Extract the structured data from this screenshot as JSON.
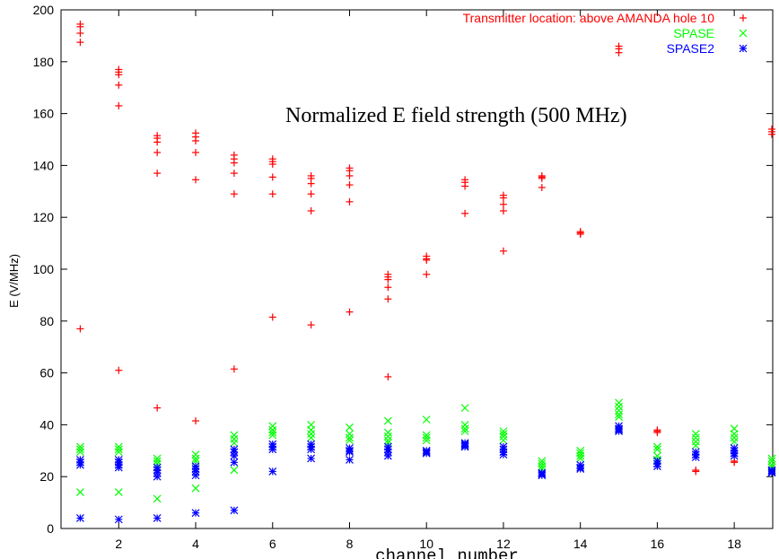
{
  "chart_data": {
    "type": "scatter",
    "title": "",
    "annotation": "Normalized E field strength (500 MHz)",
    "xlabel": "channel number",
    "ylabel": "E (V/MHz)",
    "xlim": [
      0.5,
      19
    ],
    "ylim": [
      0,
      200
    ],
    "x_ticks": [
      2,
      4,
      6,
      8,
      10,
      12,
      14,
      16,
      18
    ],
    "y_ticks": [
      0,
      20,
      40,
      60,
      80,
      100,
      120,
      140,
      160,
      180,
      200
    ],
    "grid": false,
    "legend_position": "top-right",
    "series": [
      {
        "name": "Transmitter location: above AMANDA hole 10",
        "color": "#ff0000",
        "marker": "plus",
        "points": [
          [
            1,
            194.5
          ],
          [
            1,
            193.5
          ],
          [
            1,
            191
          ],
          [
            1,
            187.5
          ],
          [
            1,
            77
          ],
          [
            2,
            177
          ],
          [
            2,
            176
          ],
          [
            2,
            175
          ],
          [
            2,
            171
          ],
          [
            2,
            163
          ],
          [
            2,
            61
          ],
          [
            3,
            151.5
          ],
          [
            3,
            150.5
          ],
          [
            3,
            149
          ],
          [
            3,
            145
          ],
          [
            3,
            137
          ],
          [
            3,
            46.5
          ],
          [
            4,
            152.5
          ],
          [
            4,
            151
          ],
          [
            4,
            149.5
          ],
          [
            4,
            145
          ],
          [
            4,
            134.5
          ],
          [
            4,
            41.5
          ],
          [
            5,
            144
          ],
          [
            5,
            142.5
          ],
          [
            5,
            141
          ],
          [
            5,
            137
          ],
          [
            5,
            129
          ],
          [
            5,
            61.5
          ],
          [
            6,
            142.5
          ],
          [
            6,
            141.5
          ],
          [
            6,
            140.5
          ],
          [
            6,
            135.5
          ],
          [
            6,
            129
          ],
          [
            6,
            81.5
          ],
          [
            7,
            136
          ],
          [
            7,
            135
          ],
          [
            7,
            133
          ],
          [
            7,
            129
          ],
          [
            7,
            122.5
          ],
          [
            7,
            78.5
          ],
          [
            8,
            139
          ],
          [
            8,
            138
          ],
          [
            8,
            136
          ],
          [
            8,
            132.5
          ],
          [
            8,
            126
          ],
          [
            8,
            83.5
          ],
          [
            9,
            98
          ],
          [
            9,
            97
          ],
          [
            9,
            96
          ],
          [
            9,
            93
          ],
          [
            9,
            88.5
          ],
          [
            9,
            58.5
          ],
          [
            10,
            105
          ],
          [
            10,
            104
          ],
          [
            10,
            103.5
          ],
          [
            10,
            98
          ],
          [
            11,
            134.5
          ],
          [
            11,
            133.5
          ],
          [
            11,
            132
          ],
          [
            11,
            121.5
          ],
          [
            12,
            128.5
          ],
          [
            12,
            127.5
          ],
          [
            12,
            125
          ],
          [
            12,
            122.5
          ],
          [
            12,
            107
          ],
          [
            13,
            136
          ],
          [
            13,
            135.5
          ],
          [
            13,
            135
          ],
          [
            13,
            131.5
          ],
          [
            14,
            114.5
          ],
          [
            14,
            114
          ],
          [
            14,
            113.5
          ],
          [
            15,
            186
          ],
          [
            15,
            185
          ],
          [
            15,
            183.5
          ],
          [
            16,
            38
          ],
          [
            16,
            37.5
          ],
          [
            16,
            37
          ],
          [
            17,
            22.5
          ],
          [
            17,
            22
          ],
          [
            18,
            26
          ],
          [
            18,
            25.5
          ],
          [
            19,
            154
          ],
          [
            19,
            153
          ],
          [
            19,
            152
          ]
        ]
      },
      {
        "name": "SPASE",
        "color": "#00ff00",
        "marker": "x",
        "points": [
          [
            1,
            31.5
          ],
          [
            1,
            30.5
          ],
          [
            1,
            29.5
          ],
          [
            1,
            14
          ],
          [
            2,
            31.5
          ],
          [
            2,
            30.5
          ],
          [
            2,
            29.5
          ],
          [
            2,
            14
          ],
          [
            3,
            27
          ],
          [
            3,
            26
          ],
          [
            3,
            25
          ],
          [
            3,
            11.5
          ],
          [
            4,
            28.5
          ],
          [
            4,
            27
          ],
          [
            4,
            26
          ],
          [
            4,
            15.5
          ],
          [
            5,
            36
          ],
          [
            5,
            34.5
          ],
          [
            5,
            33
          ],
          [
            5,
            22.5
          ],
          [
            6,
            39.5
          ],
          [
            6,
            38
          ],
          [
            6,
            37
          ],
          [
            6,
            36
          ],
          [
            7,
            40
          ],
          [
            7,
            38
          ],
          [
            7,
            36.5
          ],
          [
            7,
            35
          ],
          [
            8,
            39
          ],
          [
            8,
            36.5
          ],
          [
            8,
            35
          ],
          [
            8,
            34
          ],
          [
            9,
            41.5
          ],
          [
            9,
            37
          ],
          [
            9,
            35.5
          ],
          [
            9,
            34
          ],
          [
            9,
            33
          ],
          [
            10,
            42
          ],
          [
            10,
            36
          ],
          [
            10,
            35
          ],
          [
            10,
            34
          ],
          [
            11,
            46.5
          ],
          [
            11,
            40
          ],
          [
            11,
            38.5
          ],
          [
            11,
            37.5
          ],
          [
            12,
            37.5
          ],
          [
            12,
            36.5
          ],
          [
            12,
            35.5
          ],
          [
            12,
            34
          ],
          [
            13,
            26
          ],
          [
            13,
            25
          ],
          [
            13,
            24
          ],
          [
            13,
            23
          ],
          [
            14,
            30
          ],
          [
            14,
            29
          ],
          [
            14,
            28
          ],
          [
            14,
            27
          ],
          [
            15,
            48.5
          ],
          [
            15,
            47
          ],
          [
            15,
            45.5
          ],
          [
            15,
            44
          ],
          [
            15,
            43
          ],
          [
            16,
            31.5
          ],
          [
            16,
            30.5
          ],
          [
            16,
            28
          ],
          [
            16,
            26.5
          ],
          [
            17,
            36.5
          ],
          [
            17,
            35
          ],
          [
            17,
            33.5
          ],
          [
            17,
            32
          ],
          [
            18,
            38.5
          ],
          [
            18,
            36.5
          ],
          [
            18,
            35
          ],
          [
            18,
            33.5
          ],
          [
            19,
            27
          ],
          [
            19,
            26
          ],
          [
            19,
            24.5
          ],
          [
            19,
            23.5
          ]
        ]
      },
      {
        "name": "SPASE2",
        "color": "#0000ff",
        "marker": "star",
        "points": [
          [
            1,
            26.5
          ],
          [
            1,
            25.5
          ],
          [
            1,
            24.5
          ],
          [
            1,
            4
          ],
          [
            2,
            26.5
          ],
          [
            2,
            25.5
          ],
          [
            2,
            24.5
          ],
          [
            2,
            23.5
          ],
          [
            2,
            3.5
          ],
          [
            3,
            23.5
          ],
          [
            3,
            22.5
          ],
          [
            3,
            21.5
          ],
          [
            3,
            20
          ],
          [
            3,
            4
          ],
          [
            4,
            24
          ],
          [
            4,
            23
          ],
          [
            4,
            22
          ],
          [
            4,
            20.5
          ],
          [
            4,
            6
          ],
          [
            5,
            30.5
          ],
          [
            5,
            29.5
          ],
          [
            5,
            28
          ],
          [
            5,
            25.5
          ],
          [
            5,
            7
          ],
          [
            6,
            32.5
          ],
          [
            6,
            31.5
          ],
          [
            6,
            30.5
          ],
          [
            6,
            22
          ],
          [
            7,
            32.5
          ],
          [
            7,
            31.5
          ],
          [
            7,
            30.5
          ],
          [
            7,
            27
          ],
          [
            8,
            31
          ],
          [
            8,
            30
          ],
          [
            8,
            29.5
          ],
          [
            8,
            26.5
          ],
          [
            9,
            31.5
          ],
          [
            9,
            30.5
          ],
          [
            9,
            29.5
          ],
          [
            9,
            28
          ],
          [
            10,
            30
          ],
          [
            10,
            29.5
          ],
          [
            10,
            29
          ],
          [
            11,
            33
          ],
          [
            11,
            32.5
          ],
          [
            11,
            32
          ],
          [
            11,
            31.5
          ],
          [
            12,
            31.5
          ],
          [
            12,
            30.5
          ],
          [
            12,
            29.5
          ],
          [
            12,
            28.5
          ],
          [
            13,
            21.5
          ],
          [
            13,
            21
          ],
          [
            13,
            20.5
          ],
          [
            14,
            24.5
          ],
          [
            14,
            23.5
          ],
          [
            14,
            23
          ],
          [
            15,
            39.5
          ],
          [
            15,
            38.5
          ],
          [
            15,
            38
          ],
          [
            15,
            37.5
          ],
          [
            16,
            26
          ],
          [
            16,
            25
          ],
          [
            16,
            24
          ],
          [
            17,
            29.5
          ],
          [
            17,
            28.5
          ],
          [
            17,
            27.5
          ],
          [
            18,
            31
          ],
          [
            18,
            30
          ],
          [
            18,
            29
          ],
          [
            18,
            28
          ],
          [
            19,
            22.5
          ],
          [
            19,
            22
          ],
          [
            19,
            21.5
          ]
        ]
      }
    ]
  }
}
